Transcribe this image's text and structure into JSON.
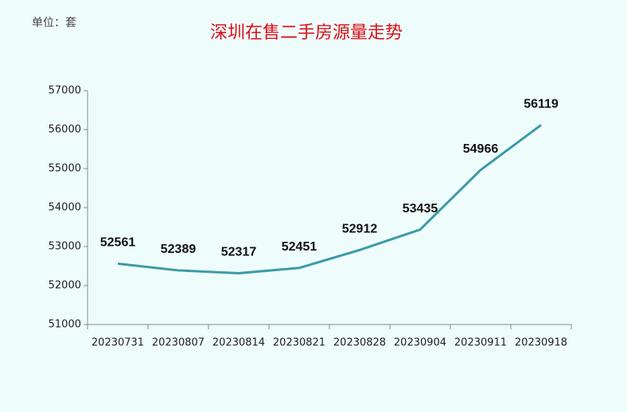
{
  "chart_data": {
    "type": "line",
    "title": "深圳在售二手房源量走势",
    "unit": "单位：套",
    "categories": [
      "20230731",
      "20230807",
      "20230814",
      "20230821",
      "20230828",
      "20230904",
      "20230911",
      "20230918"
    ],
    "values": [
      52561,
      52389,
      52317,
      52451,
      52912,
      53435,
      54966,
      56119
    ],
    "color": "#3b9aa6",
    "ylim": [
      51000,
      57000
    ],
    "yticks": [
      51000,
      52000,
      53000,
      54000,
      55000,
      56000,
      57000
    ],
    "grid": false
  }
}
